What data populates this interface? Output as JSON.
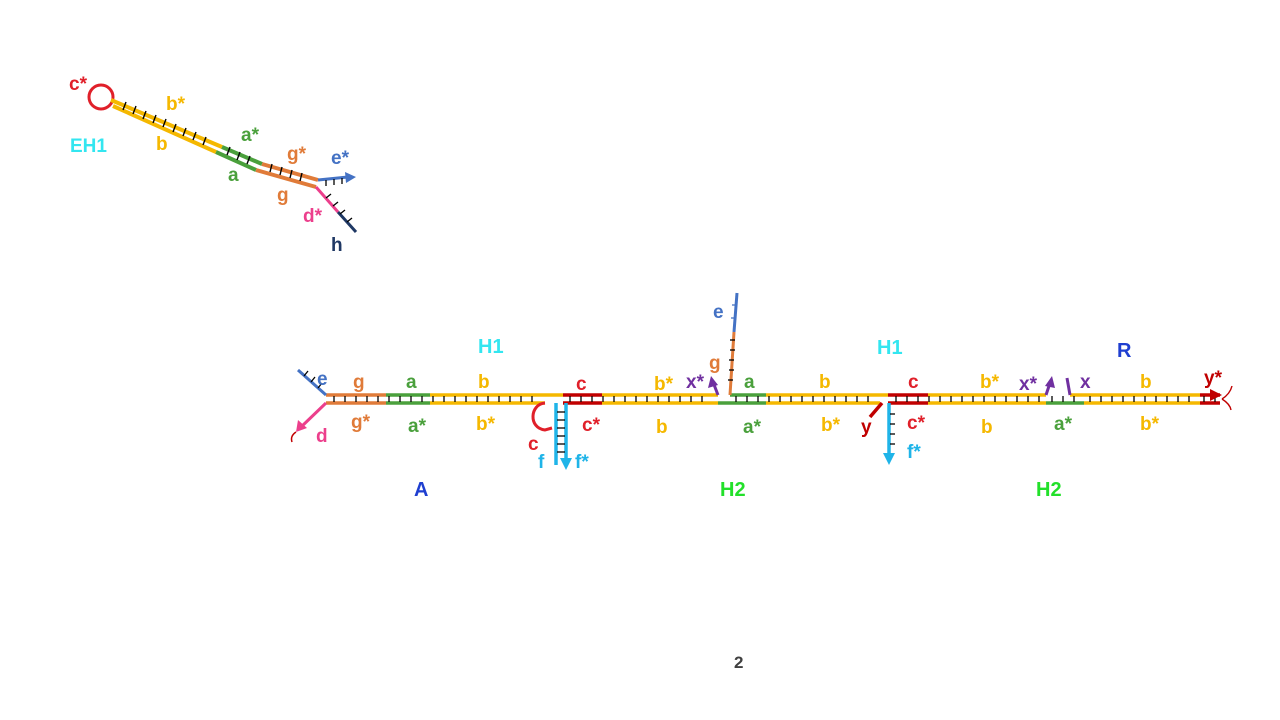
{
  "colors": {
    "red": "#e0202a",
    "darkred": "#c00000",
    "yellow": "#f5b800",
    "green": "#4aa03c",
    "orange": "#e07b39",
    "blue": "#4472c4",
    "pink": "#ec3f8c",
    "navy": "#1f3864",
    "cyan": "#1fb4e8",
    "purple": "#7030a0",
    "label_cyan": "#33e6f0",
    "label_blue": "#1f3fd0",
    "label_green": "#22e02a"
  },
  "eh1": {
    "name": "EH1",
    "labels": {
      "c_star": "c*",
      "b_star": "b*",
      "b": "b",
      "a_star": "a*",
      "a": "a",
      "g_star": "g*",
      "g": "g",
      "e_star": "e*",
      "d_star": "d*",
      "h": "h"
    }
  },
  "complex": {
    "names": {
      "h1_left": "H1",
      "h1_right": "H1",
      "R": "R",
      "A": "A",
      "h2_left": "H2",
      "h2_right": "H2"
    },
    "labels": {
      "e1": "e",
      "g1": "g",
      "a1": "a",
      "b1": "b",
      "c1": "c",
      "bs1": "b*",
      "xs1": "x*",
      "e2": "e",
      "g2": "g",
      "a2": "a",
      "b2": "b",
      "c2": "c",
      "bs2": "b*",
      "xs2": "x*",
      "x": "x",
      "b3": "b",
      "ys": "y*",
      "d": "d",
      "gs": "g*",
      "as1": "a*",
      "bs_low1": "b*",
      "c_low": "c",
      "f": "f",
      "fs1": "f*",
      "cs1": "c*",
      "b_low1": "b",
      "as2": "a*",
      "bs_low2": "b*",
      "y": "y",
      "cs2": "c*",
      "fs2": "f*",
      "b_low2": "b",
      "as3": "a*",
      "bs_low3": "b*"
    }
  },
  "page_number": "2"
}
